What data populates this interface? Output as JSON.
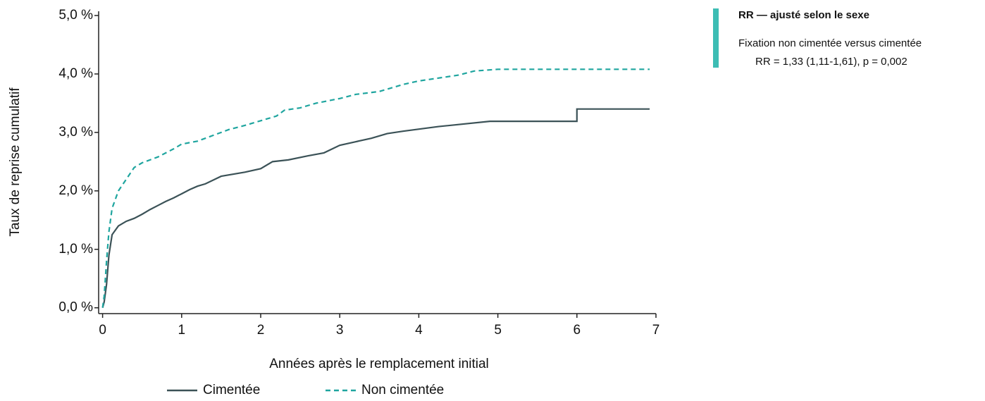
{
  "chart_data": {
    "type": "line",
    "y_label": "Taux de reprise cumulatif",
    "x_label": "Années après le remplacement initial",
    "xlim": [
      -0.05,
      7.0
    ],
    "xticks": [
      0,
      1,
      2,
      3,
      4,
      5,
      6,
      7
    ],
    "ylim": [
      -0.1,
      5.0
    ],
    "yticks": [
      {
        "value": 0,
        "label": "0,0 %"
      },
      {
        "value": 1,
        "label": "1,0 %"
      },
      {
        "value": 2,
        "label": "2,0 %"
      },
      {
        "value": 3,
        "label": "3,0 %"
      },
      {
        "value": 4,
        "label": "4,0 %"
      },
      {
        "value": 5,
        "label": "5,0 %"
      }
    ],
    "series": [
      {
        "name": "Cimentée",
        "color": "#3b5257",
        "dash": false,
        "x": [
          0,
          0.02,
          0.05,
          0.08,
          0.12,
          0.2,
          0.3,
          0.4,
          0.5,
          0.6,
          0.7,
          0.8,
          0.9,
          1.0,
          1.1,
          1.2,
          1.3,
          1.5,
          1.8,
          2.0,
          2.15,
          2.35,
          2.6,
          2.8,
          3.0,
          3.2,
          3.4,
          3.6,
          3.8,
          4.25,
          4.9,
          6.0,
          6.0,
          6.92
        ],
        "values": [
          0,
          0.1,
          0.4,
          0.9,
          1.25,
          1.4,
          1.48,
          1.53,
          1.6,
          1.68,
          1.75,
          1.82,
          1.88,
          1.95,
          2.02,
          2.08,
          2.12,
          2.25,
          2.32,
          2.38,
          2.5,
          2.53,
          2.6,
          2.65,
          2.78,
          2.84,
          2.9,
          2.98,
          3.02,
          3.1,
          3.19,
          3.19,
          3.4,
          3.4
        ]
      },
      {
        "name": "Non cimentée",
        "color": "#1fa59f",
        "dash": true,
        "x": [
          0,
          0.02,
          0.05,
          0.08,
          0.12,
          0.2,
          0.3,
          0.4,
          0.5,
          0.7,
          0.9,
          1.0,
          1.2,
          1.4,
          1.6,
          1.8,
          2.0,
          2.2,
          2.3,
          2.5,
          2.7,
          3.0,
          3.2,
          3.5,
          3.8,
          4.0,
          4.5,
          4.7,
          5.0,
          6.92
        ],
        "values": [
          0,
          0.2,
          0.8,
          1.3,
          1.7,
          2.0,
          2.2,
          2.4,
          2.48,
          2.58,
          2.72,
          2.8,
          2.85,
          2.95,
          3.05,
          3.12,
          3.2,
          3.28,
          3.38,
          3.42,
          3.5,
          3.58,
          3.65,
          3.7,
          3.82,
          3.88,
          3.98,
          4.05,
          4.08,
          4.08
        ]
      }
    ],
    "annotation": {
      "title": "RR — ajusté selon le sexe",
      "line1": "Fixation non cimentée versus cimentée",
      "line2": "RR = 1,33 (1,11-1,61), p = 0,002"
    }
  }
}
